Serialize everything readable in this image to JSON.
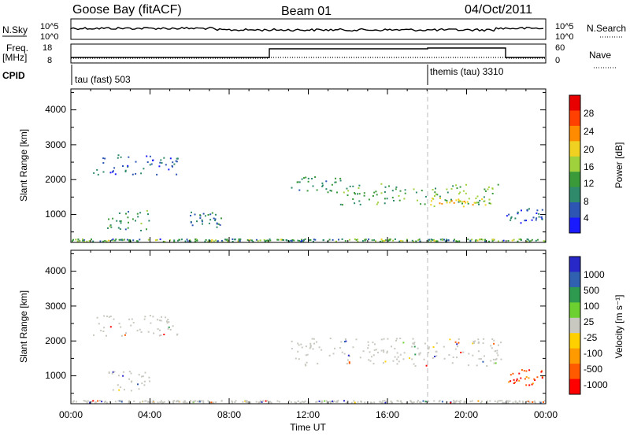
{
  "header": {
    "station": "Goose Bay (fitACF)",
    "beam": "Beam 01",
    "date": "04/Oct/2011"
  },
  "top_panels": {
    "nsky_label": "N.Sky",
    "nsky_ticks": [
      "10^5",
      "10^0"
    ],
    "nsearch_label": "N.Search",
    "nsearch_ticks": [
      "10^5",
      "10^0"
    ],
    "freq_label": "Freq.",
    "freq_unit": "[MHz]",
    "freq_ticks": [
      "18",
      "8"
    ],
    "nave_label": "Nave",
    "nave_ticks": [
      "60",
      "0"
    ],
    "cpid_label": "CPID",
    "cpid_segments": [
      {
        "label": "tau (fast) 503",
        "start_hour": 0
      },
      {
        "label": "themis (tau) 3310",
        "start_hour": 18
      }
    ]
  },
  "colors": {
    "power_scale": [
      "#1a1aff",
      "#2c55b4",
      "#2e8a6a",
      "#3a9a3a",
      "#9fd13c",
      "#f0d020",
      "#ff8c00",
      "#ff4000",
      "#e80000"
    ],
    "velocity_scale": [
      "#2828c8",
      "#3060b0",
      "#2e9a50",
      "#6bd030",
      "#c8c8c0",
      "#ffd000",
      "#ff9a00",
      "#ff5a00",
      "#ff0000"
    ],
    "ground_scatter": "#a0a0a0"
  },
  "chart_data": [
    {
      "type": "heatmap",
      "panel": "power",
      "ylabel": "Slant Range [km]",
      "xlabel": "",
      "xlim": [
        0,
        24
      ],
      "ylim": [
        200,
        4600
      ],
      "yticks": [
        "1000",
        "2000",
        "3000",
        "4000"
      ],
      "colorbar": {
        "label": "Power [dB]",
        "ticks": [
          "4",
          "8",
          "12",
          "16",
          "20",
          "24",
          "28"
        ],
        "range": [
          0,
          30
        ]
      },
      "regions": [
        {
          "t0": 1.1,
          "t1": 5.4,
          "r0": 2150,
          "r1": 2750,
          "level": 5,
          "description_only": false
        },
        {
          "t0": 1.8,
          "t1": 4.0,
          "r0": 550,
          "r1": 1150,
          "level": 10
        },
        {
          "t0": 6.0,
          "t1": 7.6,
          "r0": 650,
          "r1": 1100,
          "level": 8
        },
        {
          "t0": 11.1,
          "t1": 13.6,
          "r0": 1650,
          "r1": 2100,
          "level": 9
        },
        {
          "t0": 13.6,
          "t1": 21.8,
          "r0": 1300,
          "r1": 1900,
          "level": 12
        },
        {
          "t0": 18.0,
          "t1": 21.0,
          "r0": 1250,
          "r1": 1500,
          "level": 18
        },
        {
          "t0": 22.0,
          "t1": 23.9,
          "r0": 750,
          "r1": 1200,
          "level": 6
        }
      ]
    },
    {
      "type": "heatmap",
      "panel": "velocity",
      "ylabel": "Slant Range [km]",
      "xlabel": "Time UT",
      "xlim": [
        0,
        24
      ],
      "ylim": [
        200,
        4600
      ],
      "yticks": [
        "1000",
        "2000",
        "3000",
        "4000"
      ],
      "xticks": [
        "00:00",
        "04:00",
        "08:00",
        "12:00",
        "16:00",
        "20:00",
        "00:00"
      ],
      "colorbar": {
        "label": "Velocity [m s⁻¹]",
        "ticks": [
          "1000",
          "500",
          "100",
          "25",
          "-25",
          "-100",
          "-500",
          "-1000"
        ]
      },
      "regions": [
        {
          "t0": 1.1,
          "t1": 5.4,
          "r0": 2150,
          "r1": 2750,
          "velocity": 0
        },
        {
          "t0": 1.8,
          "t1": 4.0,
          "r0": 550,
          "r1": 1150,
          "velocity": 0
        },
        {
          "t0": 11.1,
          "t1": 21.8,
          "r0": 1300,
          "r1": 2100,
          "velocity": 0
        },
        {
          "t0": 22.0,
          "t1": 23.9,
          "r0": 750,
          "r1": 1200,
          "velocity": -300
        }
      ]
    }
  ]
}
